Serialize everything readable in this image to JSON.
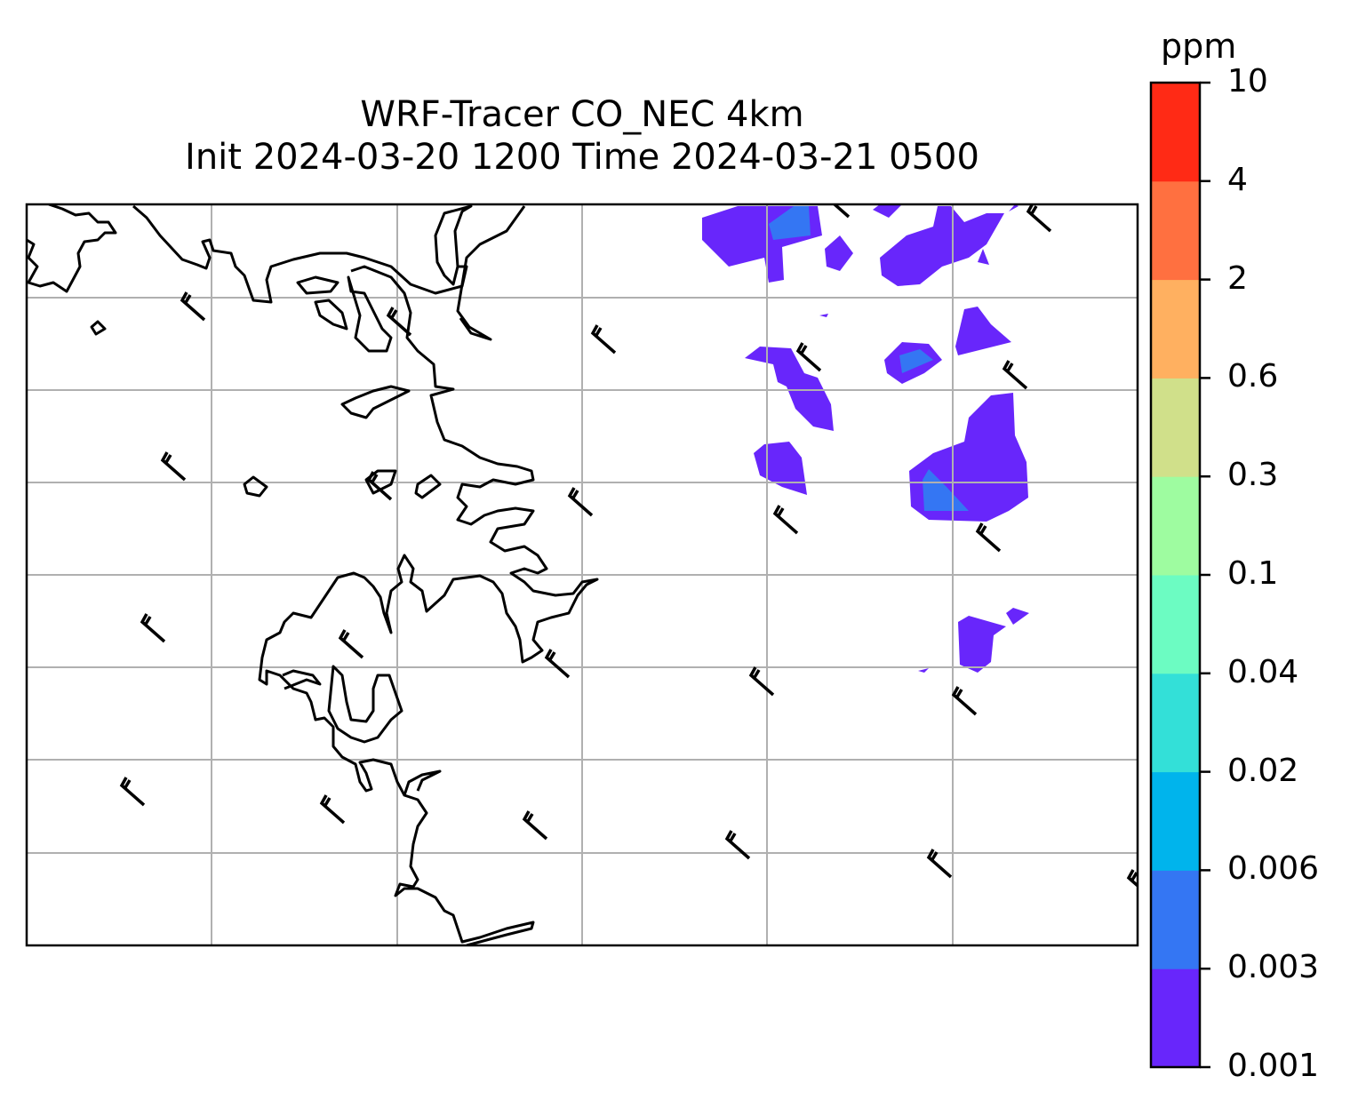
{
  "chart_data": {
    "type": "map",
    "title_line1": "WRF-Tracer CO_NEC 4km",
    "title_line2": "Init 2024-03-20 1200 Time 2024-03-21 0500",
    "colorbar": {
      "unit": "ppm",
      "levels": [
        "0.001",
        "0.003",
        "0.006",
        "0.02",
        "0.04",
        "0.1",
        "0.3",
        "0.6",
        "2",
        "4",
        "10"
      ],
      "colors": [
        "#6826fb",
        "#3476f3",
        "#00b4ec",
        "#33e0d8",
        "#6cfcc2",
        "#9efca0",
        "#d0e08a",
        "#ffb060",
        "#ff7040",
        "#ff2a15"
      ]
    },
    "layers": [
      "CO tracer filled contours",
      "coastlines",
      "wind barbs",
      "gridlines"
    ],
    "grid": true,
    "colors": {
      "coast": "#000000",
      "grid": "#b0b0b0"
    }
  }
}
